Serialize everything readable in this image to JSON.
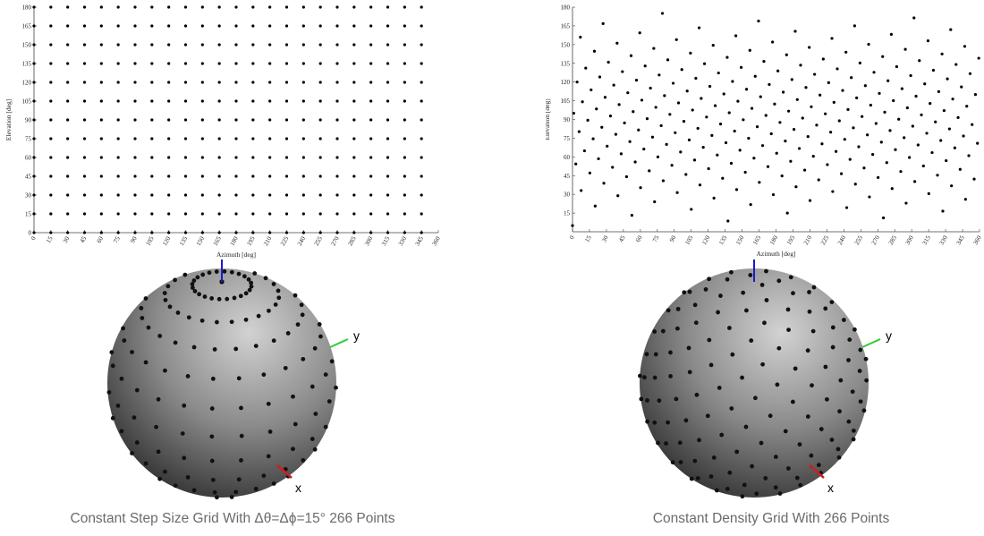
{
  "chart_data": [
    {
      "type": "scatter",
      "xlabel": "Azimuth [deg]",
      "ylabel": "Elevation [deg]",
      "xlim": [
        0,
        360
      ],
      "ylim": [
        0,
        180
      ],
      "x_ticks": [
        0,
        15,
        30,
        45,
        60,
        75,
        90,
        105,
        120,
        135,
        150,
        165,
        180,
        195,
        210,
        225,
        240,
        255,
        270,
        285,
        300,
        315,
        330,
        345,
        360
      ],
      "y_ticks": [
        0,
        15,
        30,
        45,
        60,
        75,
        90,
        105,
        120,
        135,
        150,
        165,
        180
      ],
      "grid": false,
      "marker_color": "#000000",
      "points": {
        "azimuth_values": [
          0,
          15,
          30,
          45,
          60,
          75,
          90,
          105,
          120,
          135,
          150,
          165,
          180,
          195,
          210,
          225,
          240,
          255,
          270,
          285,
          300,
          315,
          330,
          345
        ],
        "elevation_values": [
          0,
          15,
          30,
          45,
          60,
          75,
          90,
          105,
          120,
          135,
          150,
          165,
          180
        ]
      }
    },
    {
      "type": "scatter",
      "xlabel": "Azimuth [deg]",
      "ylabel": "Elevation [deg]",
      "xlim": [
        0,
        360
      ],
      "ylim": [
        0,
        180
      ],
      "x_ticks": [
        0,
        15,
        30,
        45,
        60,
        75,
        90,
        105,
        120,
        135,
        150,
        165,
        180,
        195,
        210,
        225,
        240,
        255,
        270,
        285,
        300,
        315,
        330,
        345,
        360
      ],
      "y_ticks": [
        15,
        30,
        45,
        60,
        75,
        90,
        105,
        120,
        135,
        150,
        165,
        180
      ],
      "grid": false,
      "marker_color": "#000000",
      "point_count": 266,
      "distribution": "golden-angle spiral (constant density)"
    },
    {
      "type": "sphere",
      "axis_labels": [
        "z",
        "y",
        "x"
      ],
      "axis_colors": {
        "z": "#1a1acc",
        "y": "#33cc33",
        "x": "#cc1f1f"
      },
      "sphere_color": "#8a8a8a",
      "point_color": "#111111",
      "grid_step_deg": 15
    },
    {
      "type": "sphere",
      "axis_labels": [
        "z",
        "y",
        "x"
      ],
      "axis_colors": {
        "z": "#1a1acc",
        "y": "#33cc33",
        "x": "#cc1f1f"
      },
      "sphere_color": "#8a8a8a",
      "point_color": "#111111",
      "point_count": 266
    }
  ],
  "captions": {
    "left": "Constant Step Size Grid With Δθ=Δϕ=15° 266 Points",
    "right": "Constant Density Grid With 266 Points"
  }
}
